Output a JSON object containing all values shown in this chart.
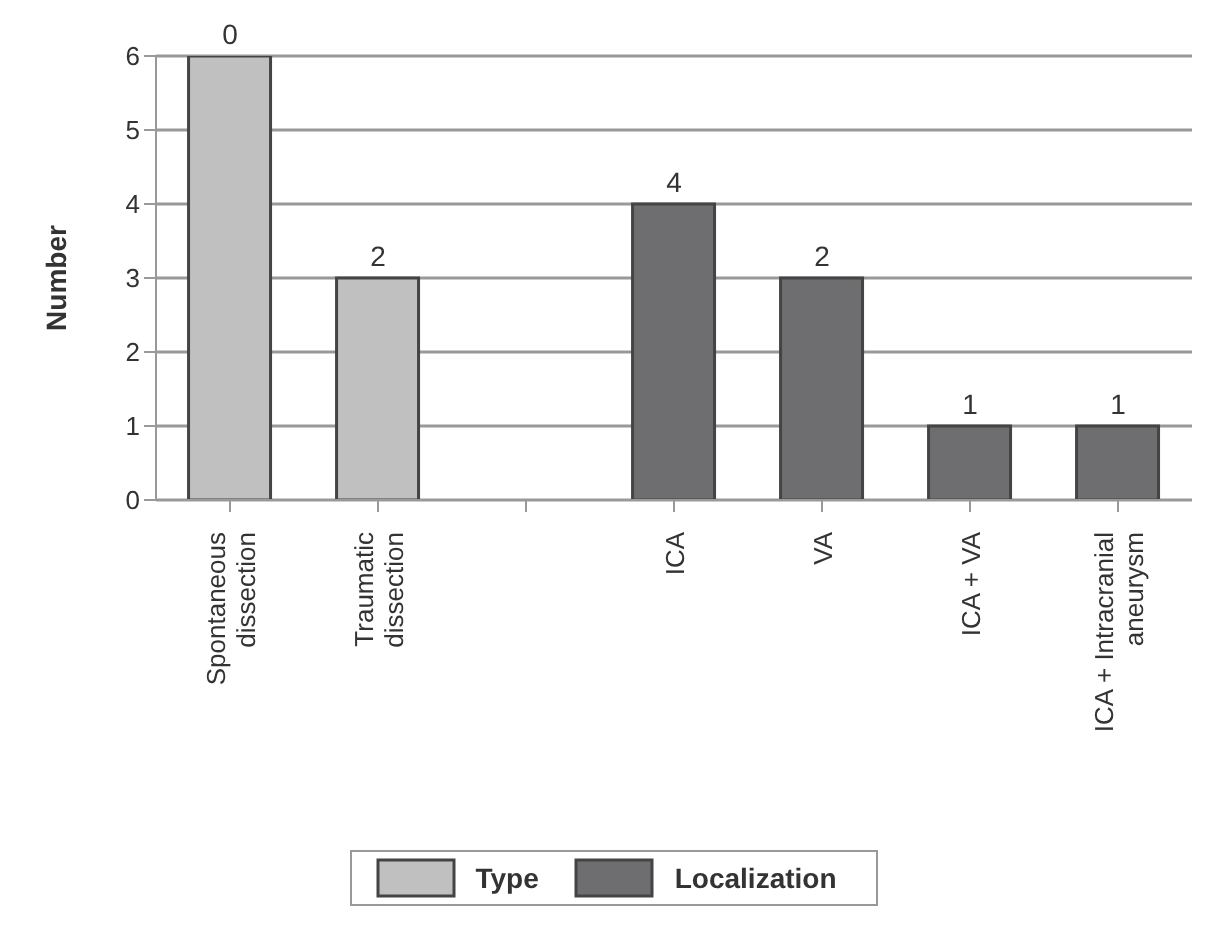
{
  "chart_data": {
    "type": "bar",
    "ylabel": "Number",
    "categories": [
      "Spontaneous dissection",
      "Traumatic dissection",
      null,
      "ICA",
      "VA",
      "ICA + VA",
      "ICA + Intracranial aneurysm"
    ],
    "series": [
      {
        "name": "Type",
        "color": "#c0c0c0",
        "values": [
          6,
          3,
          null,
          null,
          null,
          null,
          null
        ]
      },
      {
        "name": "Localization",
        "color": "#6e6e70",
        "values": [
          null,
          null,
          null,
          4,
          3,
          1,
          1
        ]
      }
    ],
    "annotations": [
      {
        "text": "0",
        "x": "Spontaneous dissection",
        "y": 6
      },
      {
        "text": "2",
        "x": "Traumatic dissection",
        "y": 3
      },
      {
        "text": "4",
        "x": "ICA",
        "y": 4
      },
      {
        "text": "2",
        "x": "VA",
        "y": 3
      },
      {
        "text": "1",
        "x": "ICA + VA",
        "y": 1
      },
      {
        "text": "1",
        "x": "ICA + Intracranial aneurysm",
        "y": 1
      }
    ],
    "stacked": true,
    "ylim": [
      0,
      6
    ],
    "yticks": [
      0,
      1,
      2,
      3,
      4,
      5,
      6
    ],
    "grid": "y",
    "legend": "bottom"
  }
}
